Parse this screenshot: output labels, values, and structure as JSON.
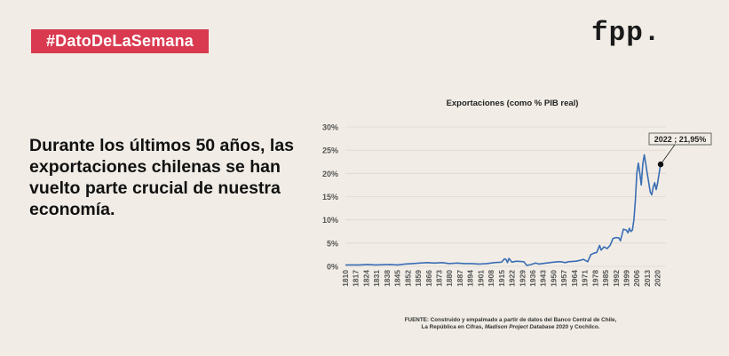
{
  "badge": "#DatoDeLaSemana",
  "logo": "fpp.",
  "headline": "Durante los últimos 50 años, las exportaciones chilenas se han vuelto parte crucial de nuestra economía.",
  "source": {
    "line1": "FUENTE: Construido y empalmado a partir de datos del Banco Central de Chile,",
    "line2_pre": "La República en Cifras, ",
    "line2_italic": "Madison Project Database",
    "line2_post": " 2020 y Cochilco."
  },
  "colors": {
    "badge": "#d93a50",
    "line": "#3a6db5",
    "background": "#f1ede6"
  },
  "chart_data": {
    "type": "line",
    "title": "Exportaciones (como % PIB real)",
    "xlabel": "",
    "ylabel": "",
    "xlim": [
      1810,
      2022
    ],
    "ylim": [
      0,
      30
    ],
    "yticks": [
      "0%",
      "5%",
      "10%",
      "15%",
      "20%",
      "25%",
      "30%"
    ],
    "xticks": [
      "1810",
      "1817",
      "1824",
      "1831",
      "1838",
      "1845",
      "1852",
      "1859",
      "1866",
      "1873",
      "1880",
      "1887",
      "1894",
      "1901",
      "1908",
      "1915",
      "1922",
      "1929",
      "1936",
      "1943",
      "1950",
      "1957",
      "1964",
      "1971",
      "1978",
      "1985",
      "1992",
      "1999",
      "2006",
      "2013",
      "2020"
    ],
    "grid": true,
    "annotation": {
      "label": "2022 ; 21,95%",
      "x": 2022,
      "y": 21.95
    },
    "x": [
      1810,
      1820,
      1825,
      1830,
      1840,
      1845,
      1850,
      1855,
      1860,
      1865,
      1870,
      1875,
      1880,
      1885,
      1890,
      1895,
      1900,
      1905,
      1910,
      1915,
      1917,
      1918,
      1919,
      1920,
      1922,
      1925,
      1930,
      1932,
      1935,
      1938,
      1940,
      1945,
      1950,
      1953,
      1955,
      1958,
      1960,
      1965,
      1968,
      1970,
      1973,
      1975,
      1977,
      1979,
      1981,
      1982,
      1984,
      1986,
      1988,
      1990,
      1992,
      1994,
      1995,
      1997,
      1999,
      2000,
      2001,
      2002,
      2003,
      2004,
      2005,
      2006,
      2007,
      2008,
      2009,
      2010,
      2011,
      2012,
      2013,
      2014,
      2015,
      2016,
      2017,
      2018,
      2019,
      2020,
      2021,
      2022
    ],
    "y": [
      0.3,
      0.3,
      0.4,
      0.3,
      0.4,
      0.3,
      0.5,
      0.6,
      0.7,
      0.8,
      0.7,
      0.8,
      0.6,
      0.7,
      0.6,
      0.6,
      0.5,
      0.6,
      0.8,
      0.9,
      1.6,
      1.5,
      0.8,
      1.7,
      0.9,
      1.1,
      1.0,
      0.2,
      0.4,
      0.7,
      0.5,
      0.7,
      0.9,
      1.0,
      1.0,
      0.8,
      1.0,
      1.1,
      1.3,
      1.5,
      1.0,
      2.5,
      2.8,
      3.0,
      4.5,
      3.5,
      4.2,
      3.8,
      4.5,
      6.0,
      6.2,
      6.1,
      5.5,
      8.0,
      7.8,
      7.2,
      8.2,
      7.5,
      7.8,
      10.0,
      14.0,
      20.0,
      22.2,
      20.0,
      17.5,
      22.0,
      24.0,
      22.0,
      20.0,
      18.0,
      16.0,
      15.4,
      17.0,
      18.0,
      16.5,
      18.0,
      20.0,
      21.95
    ]
  }
}
